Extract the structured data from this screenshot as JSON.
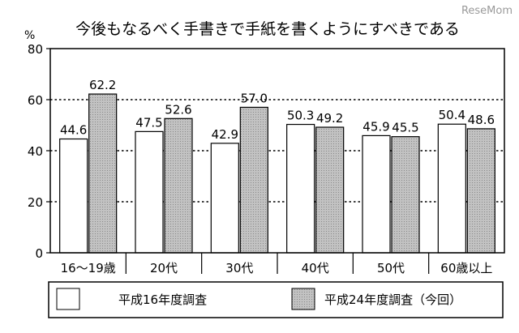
{
  "watermark": "ReseMom",
  "chart_data": {
    "type": "bar",
    "title": "今後もなるべく手書きで手紙を書くようにすべきである",
    "unit_label": "%",
    "categories": [
      "16～19歳",
      "20代",
      "30代",
      "40代",
      "50代",
      "60歳以上"
    ],
    "series": [
      {
        "name": "平成16年度調査",
        "values": [
          44.6,
          47.5,
          42.9,
          50.3,
          45.9,
          50.4
        ],
        "fill": "#ffffff"
      },
      {
        "name": "平成24年度調査（今回）",
        "values": [
          62.2,
          52.6,
          57.0,
          49.2,
          45.5,
          48.6
        ],
        "fill": "#b5b5b5"
      }
    ],
    "ylim": [
      0,
      80
    ],
    "yticks": [
      0,
      20,
      40,
      60,
      80
    ],
    "grid": "dotted horizontal at each tick",
    "legend_position": "bottom"
  }
}
